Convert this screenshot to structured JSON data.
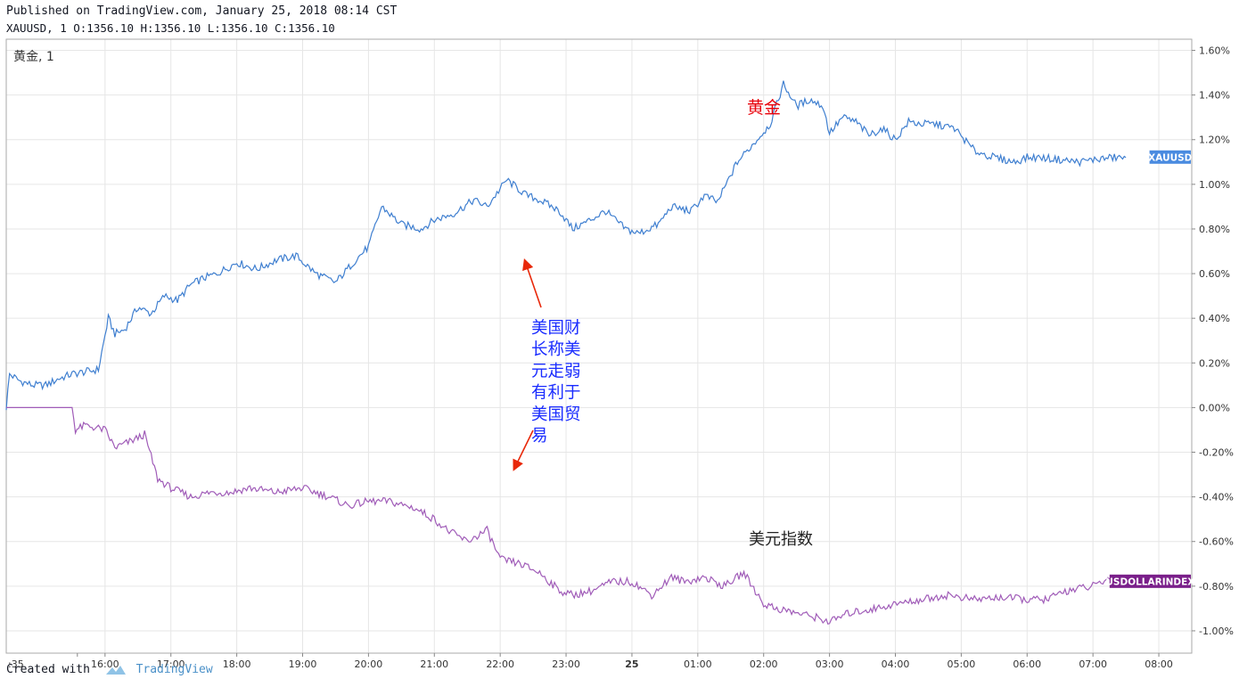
{
  "header": {
    "published": "Published on TradingView.com, January 25, 2018 08:14 CST",
    "ohlc": "XAUUSD, 1 O:1356.10 H:1356.10 L:1356.10 C:1356.10"
  },
  "footer": {
    "created_with": "Created with",
    "brand": "TradingView"
  },
  "chart_data": {
    "type": "line",
    "pane_label": "黄金, 1",
    "x_ticks": [
      ":35",
      "16:00",
      "17:00",
      "18:00",
      "19:00",
      "20:00",
      "21:00",
      "22:00",
      "23:00",
      "25",
      "01:00",
      "02:00",
      "03:00",
      "04:00",
      "05:00",
      "06:00",
      "07:00",
      "08:00"
    ],
    "x_hours": [
      -0.42,
      0,
      1,
      2,
      3,
      4,
      5,
      6,
      7,
      8,
      9,
      10,
      11,
      12,
      13,
      14,
      15,
      16
    ],
    "xlim": [
      -1.5,
      16.5
    ],
    "y_ticks": [
      "1.60%",
      "1.40%",
      "1.20%",
      "1.00%",
      "0.80%",
      "0.60%",
      "0.40%",
      "0.20%",
      "0.00%",
      "-0.20%",
      "-0.40%",
      "-0.60%",
      "-0.80%",
      "-1.00%"
    ],
    "ylim": [
      -1.1,
      1.65
    ],
    "grid": true,
    "series": [
      {
        "name": "XAUUSD",
        "color": "#3f7fd0",
        "label_color": "#4a8be0",
        "x": [
          -1.5,
          -1.45,
          -1.3,
          -1.1,
          -0.9,
          -0.7,
          -0.5,
          -0.3,
          -0.1,
          0.05,
          0.15,
          0.3,
          0.5,
          0.7,
          0.9,
          1.1,
          1.3,
          1.5,
          1.7,
          2.0,
          2.3,
          2.6,
          2.9,
          3.2,
          3.5,
          3.8,
          4.0,
          4.2,
          4.5,
          4.8,
          5.0,
          5.3,
          5.6,
          5.8,
          6.1,
          6.4,
          6.6,
          6.9,
          7.1,
          7.3,
          7.6,
          7.9,
          8.1,
          8.4,
          8.6,
          8.9,
          9.1,
          9.3,
          9.6,
          9.9,
          10.1,
          10.3,
          10.5,
          10.7,
          10.9,
          11.0,
          11.2,
          11.4,
          11.6,
          11.8,
          12.0,
          12.2,
          12.4,
          12.6,
          12.9,
          13.2,
          13.5,
          13.8,
          14.0,
          14.2,
          14.5,
          14.8,
          15.0,
          15.3,
          15.5
        ],
        "values": [
          0.0,
          0.15,
          0.12,
          0.1,
          0.1,
          0.13,
          0.15,
          0.16,
          0.17,
          0.4,
          0.33,
          0.35,
          0.45,
          0.42,
          0.5,
          0.48,
          0.55,
          0.58,
          0.6,
          0.65,
          0.62,
          0.66,
          0.68,
          0.6,
          0.56,
          0.66,
          0.72,
          0.9,
          0.82,
          0.8,
          0.84,
          0.87,
          0.93,
          0.9,
          1.02,
          0.95,
          0.93,
          0.88,
          0.8,
          0.83,
          0.88,
          0.8,
          0.78,
          0.82,
          0.9,
          0.88,
          0.95,
          0.92,
          1.1,
          1.2,
          1.27,
          1.45,
          1.35,
          1.38,
          1.35,
          1.23,
          1.3,
          1.28,
          1.22,
          1.25,
          1.2,
          1.28,
          1.27,
          1.27,
          1.25,
          1.15,
          1.12,
          1.1,
          1.12,
          1.12,
          1.11,
          1.1,
          1.11,
          1.12,
          1.12
        ]
      },
      {
        "name": "USDOLLARINDEX",
        "color": "#a05cb8",
        "label_color": "#7a1f8a",
        "x": [
          -1.5,
          -1.0,
          -0.5,
          -0.45,
          -0.3,
          0.0,
          0.15,
          0.4,
          0.6,
          0.8,
          1.0,
          1.3,
          1.6,
          1.9,
          2.2,
          2.6,
          3.0,
          3.4,
          3.7,
          4.0,
          4.3,
          4.7,
          5.0,
          5.2,
          5.5,
          5.8,
          6.0,
          6.3,
          6.6,
          6.9,
          7.1,
          7.4,
          7.7,
          8.0,
          8.3,
          8.6,
          8.8,
          9.1,
          9.4,
          9.7,
          10.0,
          10.2,
          10.5,
          10.8,
          11.0,
          11.3,
          11.7,
          12.0,
          12.4,
          12.8,
          13.2,
          13.6,
          14.0,
          14.3,
          14.6,
          15.0,
          15.3,
          15.5
        ],
        "values": [
          0.0,
          0.0,
          0.0,
          -0.1,
          -0.08,
          -0.1,
          -0.18,
          -0.15,
          -0.12,
          -0.32,
          -0.36,
          -0.4,
          -0.38,
          -0.38,
          -0.36,
          -0.38,
          -0.36,
          -0.4,
          -0.44,
          -0.42,
          -0.42,
          -0.45,
          -0.5,
          -0.55,
          -0.6,
          -0.55,
          -0.68,
          -0.7,
          -0.74,
          -0.82,
          -0.84,
          -0.82,
          -0.78,
          -0.78,
          -0.84,
          -0.76,
          -0.78,
          -0.76,
          -0.8,
          -0.74,
          -0.88,
          -0.9,
          -0.92,
          -0.94,
          -0.96,
          -0.92,
          -0.9,
          -0.88,
          -0.86,
          -0.84,
          -0.86,
          -0.85,
          -0.86,
          -0.86,
          -0.82,
          -0.8,
          -0.76,
          -0.78
        ]
      }
    ],
    "annotations": {
      "gold_label": "黄金",
      "gold_label_color": "#e8000a",
      "dollar_label": "美元指数",
      "dollar_label_color": "#222222",
      "note_lines": [
        "美国财",
        "长称美",
        "元走弱",
        "有利于",
        "美国贸",
        "易"
      ],
      "note_color": "#1a2cff",
      "arrow_color": "#e8280a"
    }
  }
}
